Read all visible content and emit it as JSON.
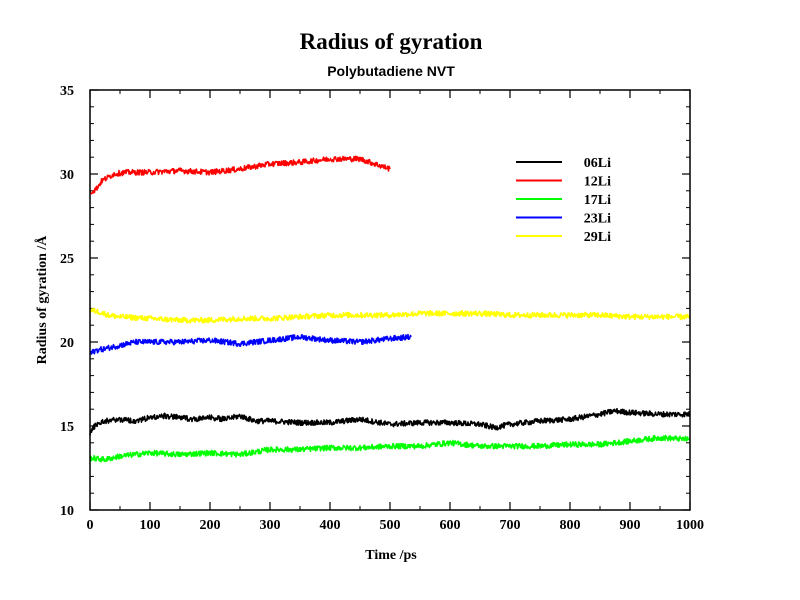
{
  "chart_data": {
    "type": "line",
    "title": "Radius of gyration",
    "subtitle": "Polybutadiene NVT",
    "xlabel": "Time /ps",
    "ylabel": "Radius of gyration /Å",
    "xlim": [
      0,
      1000
    ],
    "ylim": [
      10,
      35
    ],
    "xticks": [
      "0",
      "100",
      "200",
      "300",
      "400",
      "500",
      "600",
      "700",
      "800",
      "900",
      "1000"
    ],
    "yticks": [
      "10",
      "15",
      "20",
      "25",
      "30",
      "35"
    ],
    "grid": false,
    "legend_position": "top-right",
    "series": [
      {
        "name": "06Li",
        "color": "#000000",
        "x": [
          0,
          10,
          25,
          50,
          75,
          100,
          125,
          150,
          175,
          200,
          225,
          250,
          275,
          300,
          350,
          400,
          450,
          500,
          550,
          600,
          650,
          675,
          700,
          750,
          800,
          850,
          875,
          900,
          950,
          1000
        ],
        "y": [
          14.6,
          15.1,
          15.3,
          15.4,
          15.3,
          15.5,
          15.6,
          15.5,
          15.4,
          15.5,
          15.4,
          15.6,
          15.3,
          15.3,
          15.2,
          15.2,
          15.4,
          15.1,
          15.2,
          15.2,
          15.1,
          14.9,
          15.1,
          15.3,
          15.4,
          15.7,
          15.9,
          15.8,
          15.7,
          15.7
        ]
      },
      {
        "name": "12Li",
        "color": "#ff0000",
        "x": [
          0,
          10,
          20,
          40,
          60,
          80,
          100,
          150,
          200,
          250,
          300,
          350,
          400,
          450,
          475,
          500
        ],
        "y": [
          28.9,
          29.1,
          29.6,
          30.0,
          30.1,
          30.1,
          30.1,
          30.2,
          30.1,
          30.3,
          30.6,
          30.7,
          30.9,
          30.9,
          30.6,
          30.3
        ]
      },
      {
        "name": "17Li",
        "color": "#00ff00",
        "x": [
          0,
          25,
          50,
          100,
          150,
          200,
          250,
          300,
          350,
          400,
          450,
          500,
          550,
          600,
          650,
          700,
          750,
          800,
          850,
          900,
          950,
          1000
        ],
        "y": [
          13.1,
          13.0,
          13.2,
          13.4,
          13.3,
          13.4,
          13.3,
          13.6,
          13.6,
          13.7,
          13.7,
          13.8,
          13.8,
          14.0,
          13.8,
          13.8,
          13.8,
          13.9,
          13.9,
          14.1,
          14.3,
          14.2
        ]
      },
      {
        "name": "23Li",
        "color": "#0000ff",
        "x": [
          0,
          10,
          25,
          50,
          75,
          100,
          150,
          200,
          250,
          300,
          350,
          400,
          450,
          500,
          535
        ],
        "y": [
          19.3,
          19.5,
          19.6,
          19.8,
          20.0,
          20.0,
          20.0,
          20.1,
          19.9,
          20.1,
          20.3,
          20.1,
          20.0,
          20.2,
          20.3
        ]
      },
      {
        "name": "29Li",
        "color": "#ffff00",
        "x": [
          0,
          15,
          30,
          50,
          100,
          150,
          200,
          250,
          300,
          350,
          400,
          450,
          500,
          550,
          600,
          650,
          700,
          750,
          800,
          850,
          900,
          950,
          1000
        ],
        "y": [
          21.9,
          21.8,
          21.6,
          21.5,
          21.4,
          21.3,
          21.3,
          21.4,
          21.4,
          21.5,
          21.6,
          21.6,
          21.6,
          21.7,
          21.7,
          21.7,
          21.6,
          21.6,
          21.6,
          21.6,
          21.5,
          21.5,
          21.5
        ]
      }
    ]
  }
}
